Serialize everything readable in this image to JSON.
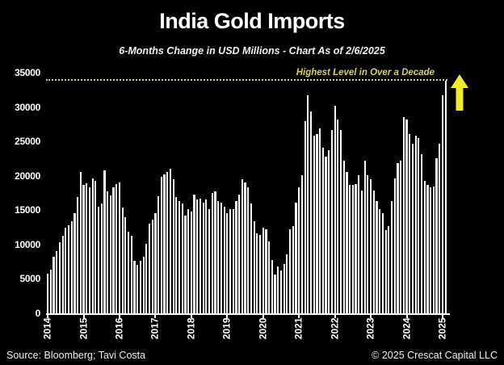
{
  "header": {
    "title": "India Gold Imports",
    "subtitle": "6-Months Change in USD Millions - Chart As of 2/6/2025"
  },
  "annotation": {
    "label": "Highest Level in Over a Decade",
    "text_color": "#d6d257",
    "arrow_color": "#f0eb2d"
  },
  "footer": {
    "source": "Source: Bloomberg; Tavi Costa",
    "copyright": "© 2025 Crescat Capital LLC"
  },
  "chart_data": {
    "type": "bar",
    "title": "India Gold Imports",
    "subtitle": "6-Months Change in USD Millions - Chart As of 2/6/2025",
    "frequency": "monthly",
    "x_start": "2014-01",
    "x_end": "2025-02",
    "x_tick_labels": [
      "2014",
      "2015",
      "2016",
      "2017",
      "2018",
      "2019",
      "2020",
      "2021",
      "2022",
      "2023",
      "2024",
      "2025"
    ],
    "y_ticks": [
      0,
      5000,
      10000,
      15000,
      20000,
      25000,
      30000,
      35000
    ],
    "ylim": [
      0,
      35000
    ],
    "grid": false,
    "legend": false,
    "background_color": "#000000",
    "bar_color": "#f7f7f7",
    "dotted_line_value": 33830,
    "dotted_line_color": "#c9c9a6",
    "series": [
      {
        "name": "6-month change in gold imports (USD millions)",
        "values": [
          5800,
          6400,
          8200,
          9100,
          10300,
          11300,
          12450,
          12850,
          13400,
          14600,
          16900,
          20600,
          18700,
          18900,
          18300,
          19600,
          19250,
          15550,
          15950,
          20800,
          17700,
          17100,
          18300,
          18850,
          19050,
          15350,
          14000,
          11900,
          11300,
          7600,
          7000,
          7600,
          8200,
          10100,
          13000,
          13600,
          14600,
          17000,
          19800,
          20200,
          20600,
          21000,
          19450,
          16900,
          16300,
          15950,
          14200,
          15150,
          14800,
          17300,
          16550,
          16700,
          16150,
          16550,
          15150,
          17500,
          17700,
          16300,
          16150,
          15550,
          14600,
          15150,
          15150,
          16300,
          17300,
          19450,
          19050,
          18300,
          15950,
          13400,
          11650,
          11450,
          12450,
          12250,
          10500,
          7800,
          5650,
          6800,
          6200,
          7200,
          8550,
          12250,
          12650,
          16150,
          18300,
          20050,
          28000,
          31700,
          29350,
          25850,
          26100,
          26850,
          24100,
          22750,
          23700,
          26650,
          30150,
          28200,
          26650,
          22150,
          20600,
          18650,
          18650,
          18850,
          20050,
          17900,
          22150,
          20050,
          19450,
          17900,
          16350,
          15150,
          14600,
          12050,
          12650,
          16350,
          19650,
          21800,
          22150,
          28600,
          28200,
          26050,
          24700,
          25850,
          25450,
          23150,
          19250,
          18650,
          18300,
          18450,
          22550,
          24700,
          31700,
          33830
        ]
      }
    ]
  }
}
